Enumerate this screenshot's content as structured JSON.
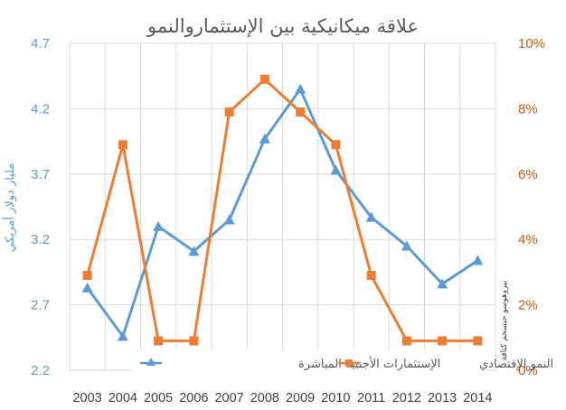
{
  "chart_data": {
    "type": "line",
    "title": "علاقة ميكانيكية بين الإستثماروالنمو",
    "ylabel_left": "مليار دولار أمريكي",
    "ylabel_right": "بيروهوسو حبسحم كثافة",
    "categories": [
      "2003",
      "2004",
      "2005",
      "2006",
      "2007",
      "2008",
      "2009",
      "2010",
      "2011",
      "2012",
      "2013",
      "2014"
    ],
    "yaxis_left": {
      "min": 2.2,
      "max": 4.7,
      "ticks": [
        "2.2",
        "2.7",
        "3.2",
        "3.7",
        "4.2",
        "4.7"
      ]
    },
    "yaxis_right": {
      "min": 0,
      "max": 10,
      "ticks": [
        "0%",
        "2%",
        "4%",
        "6%",
        "8%",
        "10%"
      ]
    },
    "grid": true,
    "legend_position": "bottom-inside",
    "series": [
      {
        "name": "الإستثمارات الأجنبية المباشرة",
        "axis": "left",
        "color": "#5b9bd5",
        "marker": "triangle",
        "values": [
          2.83,
          2.46,
          3.3,
          3.11,
          3.35,
          3.97,
          4.35,
          3.73,
          3.37,
          3.15,
          2.86,
          3.04
        ]
      },
      {
        "name": "النمو الإقتصادي",
        "axis": "right",
        "color": "#ed7d31",
        "marker": "square",
        "values": [
          2.9,
          6.9,
          0.9,
          0.9,
          7.9,
          8.9,
          7.9,
          6.9,
          2.9,
          0.9,
          0.9,
          0.9
        ]
      }
    ]
  }
}
